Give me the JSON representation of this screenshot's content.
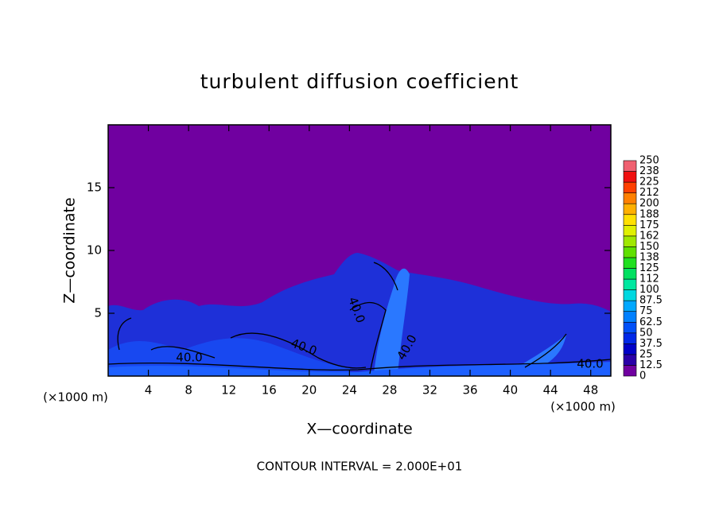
{
  "chart_data": {
    "type": "contour",
    "title": "turbulent diffusion coefficient",
    "xlabel": "X—coordinate",
    "ylabel": "Z—coordinate",
    "xunit": "(×1000 m)",
    "yunit": "(×1000 m)",
    "note": "CONTOUR INTERVAL = 2.000E+01",
    "xlim": [
      0,
      50
    ],
    "ylim": [
      0,
      20
    ],
    "xticks": [
      4,
      8,
      12,
      16,
      20,
      24,
      28,
      32,
      36,
      40,
      44,
      48
    ],
    "yticks": [
      5,
      10,
      15
    ],
    "contour_labels": [
      "40.0",
      "40.0",
      "40.0",
      "40.0",
      "40.0"
    ],
    "colorbar": {
      "levels": [
        0,
        12.5,
        25,
        37.5,
        50,
        62.5,
        75,
        87.5,
        100,
        {
          "value": 112.5,
          "label": "112"
        },
        125,
        {
          "value": 137.5,
          "label": "138"
        },
        150,
        {
          "value": 162.5,
          "label": "162"
        },
        175,
        {
          "value": 187.5,
          "label": "188"
        },
        200,
        {
          "value": 212.5,
          "label": "212"
        },
        225,
        {
          "value": 237.5,
          "label": "238"
        },
        250
      ],
      "colors": [
        "#7000a0",
        "#2a00a8",
        "#0000c8",
        "#0028e8",
        "#0050f8",
        "#0080ff",
        "#00a8ff",
        "#00d8e0",
        "#00e8a0",
        "#00e060",
        "#20e020",
        "#60e000",
        "#a0e800",
        "#e0f000",
        "#ffe000",
        "#ffb000",
        "#ff8000",
        "#ff4000",
        "#f01010",
        "#f06070"
      ]
    }
  }
}
